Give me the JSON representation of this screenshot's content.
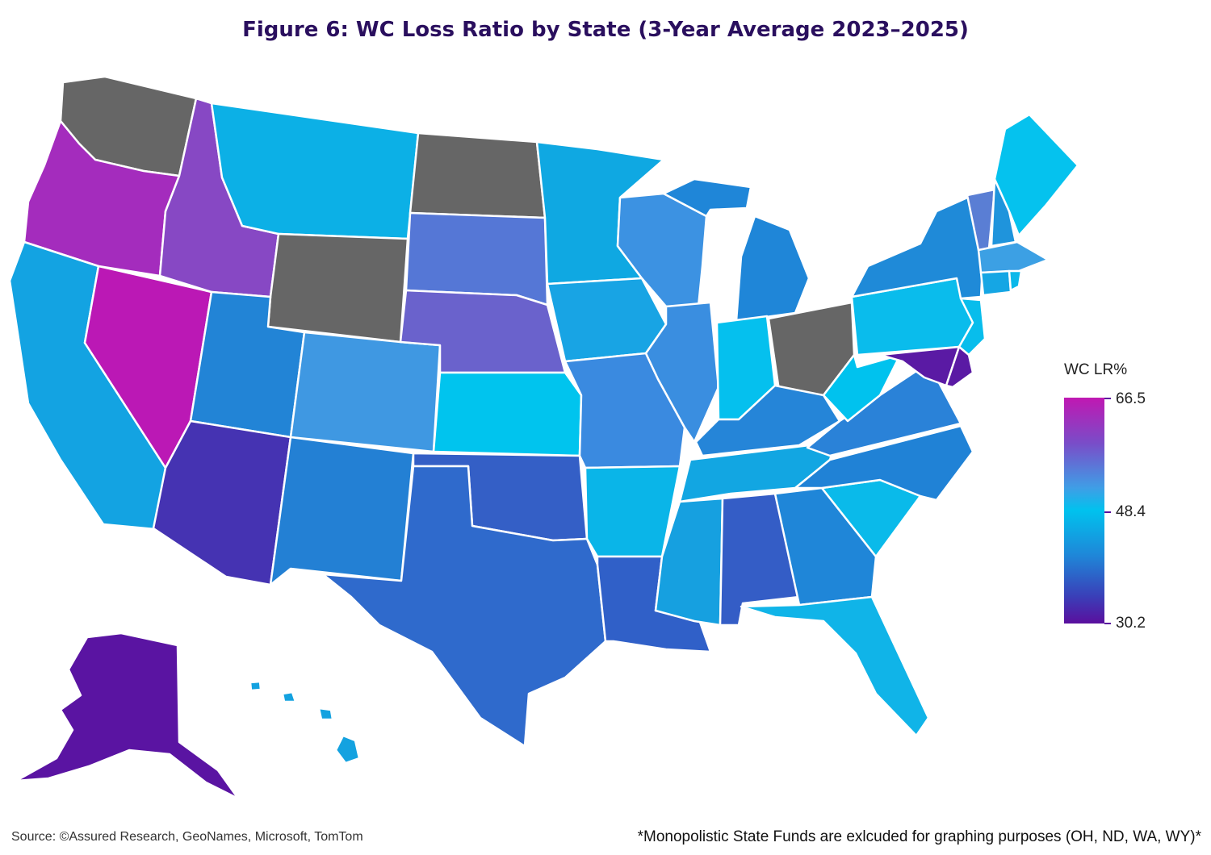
{
  "title": "Figure 6: WC Loss Ratio by State (3-Year Average 2023–2025)",
  "legend": {
    "title": "WC LR%",
    "max": "66.5",
    "mid": "48.4",
    "min": "30.2",
    "colors": [
      "#c018b2",
      "#7a4cc8",
      "#3f9ee6",
      "#00c2ee",
      "#1f86d8",
      "#3a3fb8",
      "#5a0f9e"
    ]
  },
  "excluded_color": "#666666",
  "source": "Source: ©Assured Research, GeoNames, Microsoft, TomTom",
  "footnote": "*Monopolistic State Funds are exlcuded for graphing purposes (OH, ND, WA, WY)*",
  "states": {
    "WA": {
      "color": "#666666"
    },
    "OR": {
      "color": "#a42cbd"
    },
    "CA": {
      "color": "#13a3e2"
    },
    "NV": {
      "color": "#bb18b5"
    },
    "ID": {
      "color": "#8748c4"
    },
    "MT": {
      "color": "#0cb0e6"
    },
    "WY": {
      "color": "#666666"
    },
    "UT": {
      "color": "#2284d6"
    },
    "AZ": {
      "color": "#4533b2"
    },
    "CO": {
      "color": "#3f98e2"
    },
    "NM": {
      "color": "#2380d4"
    },
    "ND": {
      "color": "#666666"
    },
    "SD": {
      "color": "#5577d6"
    },
    "NE": {
      "color": "#6a62cc"
    },
    "KS": {
      "color": "#00c4ee"
    },
    "OK": {
      "color": "#345fc6"
    },
    "TX": {
      "color": "#2f6acc"
    },
    "MN": {
      "color": "#0fa8e2"
    },
    "IA": {
      "color": "#18a4e4"
    },
    "MO": {
      "color": "#3a8ae0"
    },
    "AR": {
      "color": "#0ab5e8"
    },
    "LA": {
      "color": "#3060c8"
    },
    "WI": {
      "color": "#3c92e2"
    },
    "IL": {
      "color": "#3a8ee0"
    },
    "MI": {
      "color": "#1f86d8"
    },
    "IN": {
      "color": "#05c0ee"
    },
    "OH": {
      "color": "#666666"
    },
    "KY": {
      "color": "#2585d8"
    },
    "TN": {
      "color": "#12a6e2"
    },
    "MS": {
      "color": "#16a0e0"
    },
    "AL": {
      "color": "#345dc6"
    },
    "GA": {
      "color": "#1f86d8"
    },
    "FL": {
      "color": "#10b4e8"
    },
    "SC": {
      "color": "#0abaea"
    },
    "NC": {
      "color": "#2082d6"
    },
    "VA": {
      "color": "#2a82d8"
    },
    "WV": {
      "color": "#00c2ee"
    },
    "PA": {
      "color": "#0abcec"
    },
    "NY": {
      "color": "#1f8ad8"
    },
    "NJ": {
      "color": "#08bdec"
    },
    "MD": {
      "color": "#5a1aa4"
    },
    "DE": {
      "color": "#5a1aa4"
    },
    "VT": {
      "color": "#5a7ed4"
    },
    "NH": {
      "color": "#1f94dc"
    },
    "ME": {
      "color": "#05c2ee"
    },
    "MA": {
      "color": "#3ca0e4"
    },
    "CT": {
      "color": "#15a6e4"
    },
    "RI": {
      "color": "#0ab8ea"
    },
    "AK": {
      "color": "#5a14a2"
    },
    "HI": {
      "color": "#14a2e0"
    }
  }
}
